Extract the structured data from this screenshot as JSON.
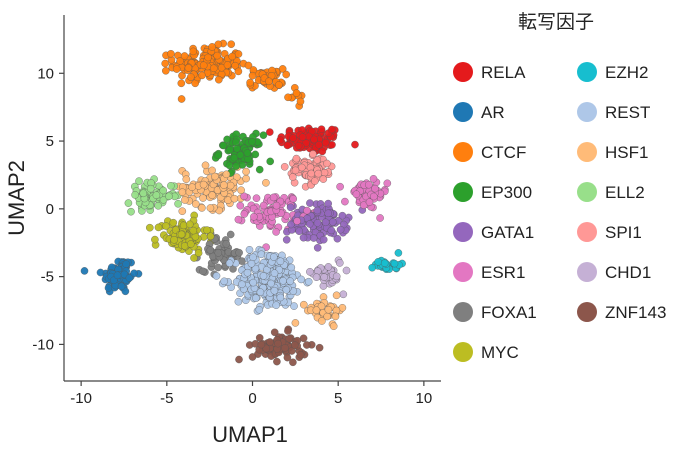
{
  "chart_data": {
    "type": "scatter",
    "xlabel": "UMAP1",
    "ylabel": "UMAP2",
    "xlim": [
      -11,
      11
    ],
    "ylim": [
      -12.7,
      14.3
    ],
    "xticks": [
      -10,
      -5,
      0,
      5,
      10
    ],
    "yticks": [
      -10,
      -5,
      0,
      5,
      10
    ],
    "grid": false,
    "legend_title": "転写因子",
    "legend_position": "right",
    "series": [
      {
        "name": "RELA",
        "color": "#e41a1c",
        "clusters": [
          {
            "cx": 3.4,
            "cy": 5.1,
            "sx": 1.5,
            "sy": 0.8,
            "n": 90
          }
        ]
      },
      {
        "name": "AR",
        "color": "#1f78b4",
        "clusters": [
          {
            "cx": -7.8,
            "cy": -4.9,
            "sx": 0.8,
            "sy": 1.1,
            "n": 75
          }
        ]
      },
      {
        "name": "CTCF",
        "color": "#ff7f0e",
        "clusters": [
          {
            "cx": -2.6,
            "cy": 10.7,
            "sx": 1.6,
            "sy": 1.0,
            "n": 170
          },
          {
            "cx": 0.8,
            "cy": 9.6,
            "sx": 0.8,
            "sy": 0.6,
            "n": 45
          },
          {
            "cx": 2.5,
            "cy": 8.3,
            "sx": 0.4,
            "sy": 0.4,
            "n": 10
          }
        ]
      },
      {
        "name": "EP300",
        "color": "#2ca02c",
        "clusters": [
          {
            "cx": -0.7,
            "cy": 4.2,
            "sx": 1.0,
            "sy": 1.0,
            "n": 90
          }
        ]
      },
      {
        "name": "GATA1",
        "color": "#9467bd",
        "clusters": [
          {
            "cx": 3.8,
            "cy": -1.0,
            "sx": 1.4,
            "sy": 1.1,
            "n": 110
          }
        ]
      },
      {
        "name": "ESR1",
        "color": "#e377c2",
        "clusters": [
          {
            "cx": 1.2,
            "cy": -0.2,
            "sx": 1.3,
            "sy": 1.1,
            "n": 80
          },
          {
            "cx": 6.6,
            "cy": 1.0,
            "sx": 1.0,
            "sy": 0.9,
            "n": 55
          }
        ]
      },
      {
        "name": "FOXA1",
        "color": "#7f7f7f",
        "clusters": [
          {
            "cx": -1.8,
            "cy": -3.3,
            "sx": 1.0,
            "sy": 1.0,
            "n": 60
          }
        ]
      },
      {
        "name": "MYC",
        "color": "#bcbd22",
        "clusters": [
          {
            "cx": -4.1,
            "cy": -2.0,
            "sx": 1.2,
            "sy": 1.0,
            "n": 90
          }
        ]
      },
      {
        "name": "EZH2",
        "color": "#17becf",
        "clusters": [
          {
            "cx": 7.9,
            "cy": -4.1,
            "sx": 0.6,
            "sy": 0.4,
            "n": 25
          }
        ]
      },
      {
        "name": "REST",
        "color": "#aec7e8",
        "clusters": [
          {
            "cx": 1.0,
            "cy": -5.2,
            "sx": 1.6,
            "sy": 1.7,
            "n": 250
          }
        ]
      },
      {
        "name": "HSF1",
        "color": "#ffbb78",
        "clusters": [
          {
            "cx": -2.2,
            "cy": 1.6,
            "sx": 1.5,
            "sy": 1.2,
            "n": 110
          },
          {
            "cx": 4.3,
            "cy": -7.5,
            "sx": 0.9,
            "sy": 0.7,
            "n": 40
          }
        ]
      },
      {
        "name": "ELL2",
        "color": "#98df8a",
        "clusters": [
          {
            "cx": -5.9,
            "cy": 1.0,
            "sx": 1.1,
            "sy": 0.8,
            "n": 70
          }
        ]
      },
      {
        "name": "SPI1",
        "color": "#ff9896",
        "clusters": [
          {
            "cx": 3.4,
            "cy": 2.8,
            "sx": 1.1,
            "sy": 0.8,
            "n": 75
          }
        ]
      },
      {
        "name": "CHD1",
        "color": "#c5b0d5",
        "clusters": [
          {
            "cx": 4.4,
            "cy": -4.7,
            "sx": 0.7,
            "sy": 0.9,
            "n": 35
          }
        ]
      },
      {
        "name": "ZNF143",
        "color": "#8c564b",
        "clusters": [
          {
            "cx": 1.6,
            "cy": -10.2,
            "sx": 1.3,
            "sy": 0.8,
            "n": 75
          }
        ]
      }
    ]
  }
}
